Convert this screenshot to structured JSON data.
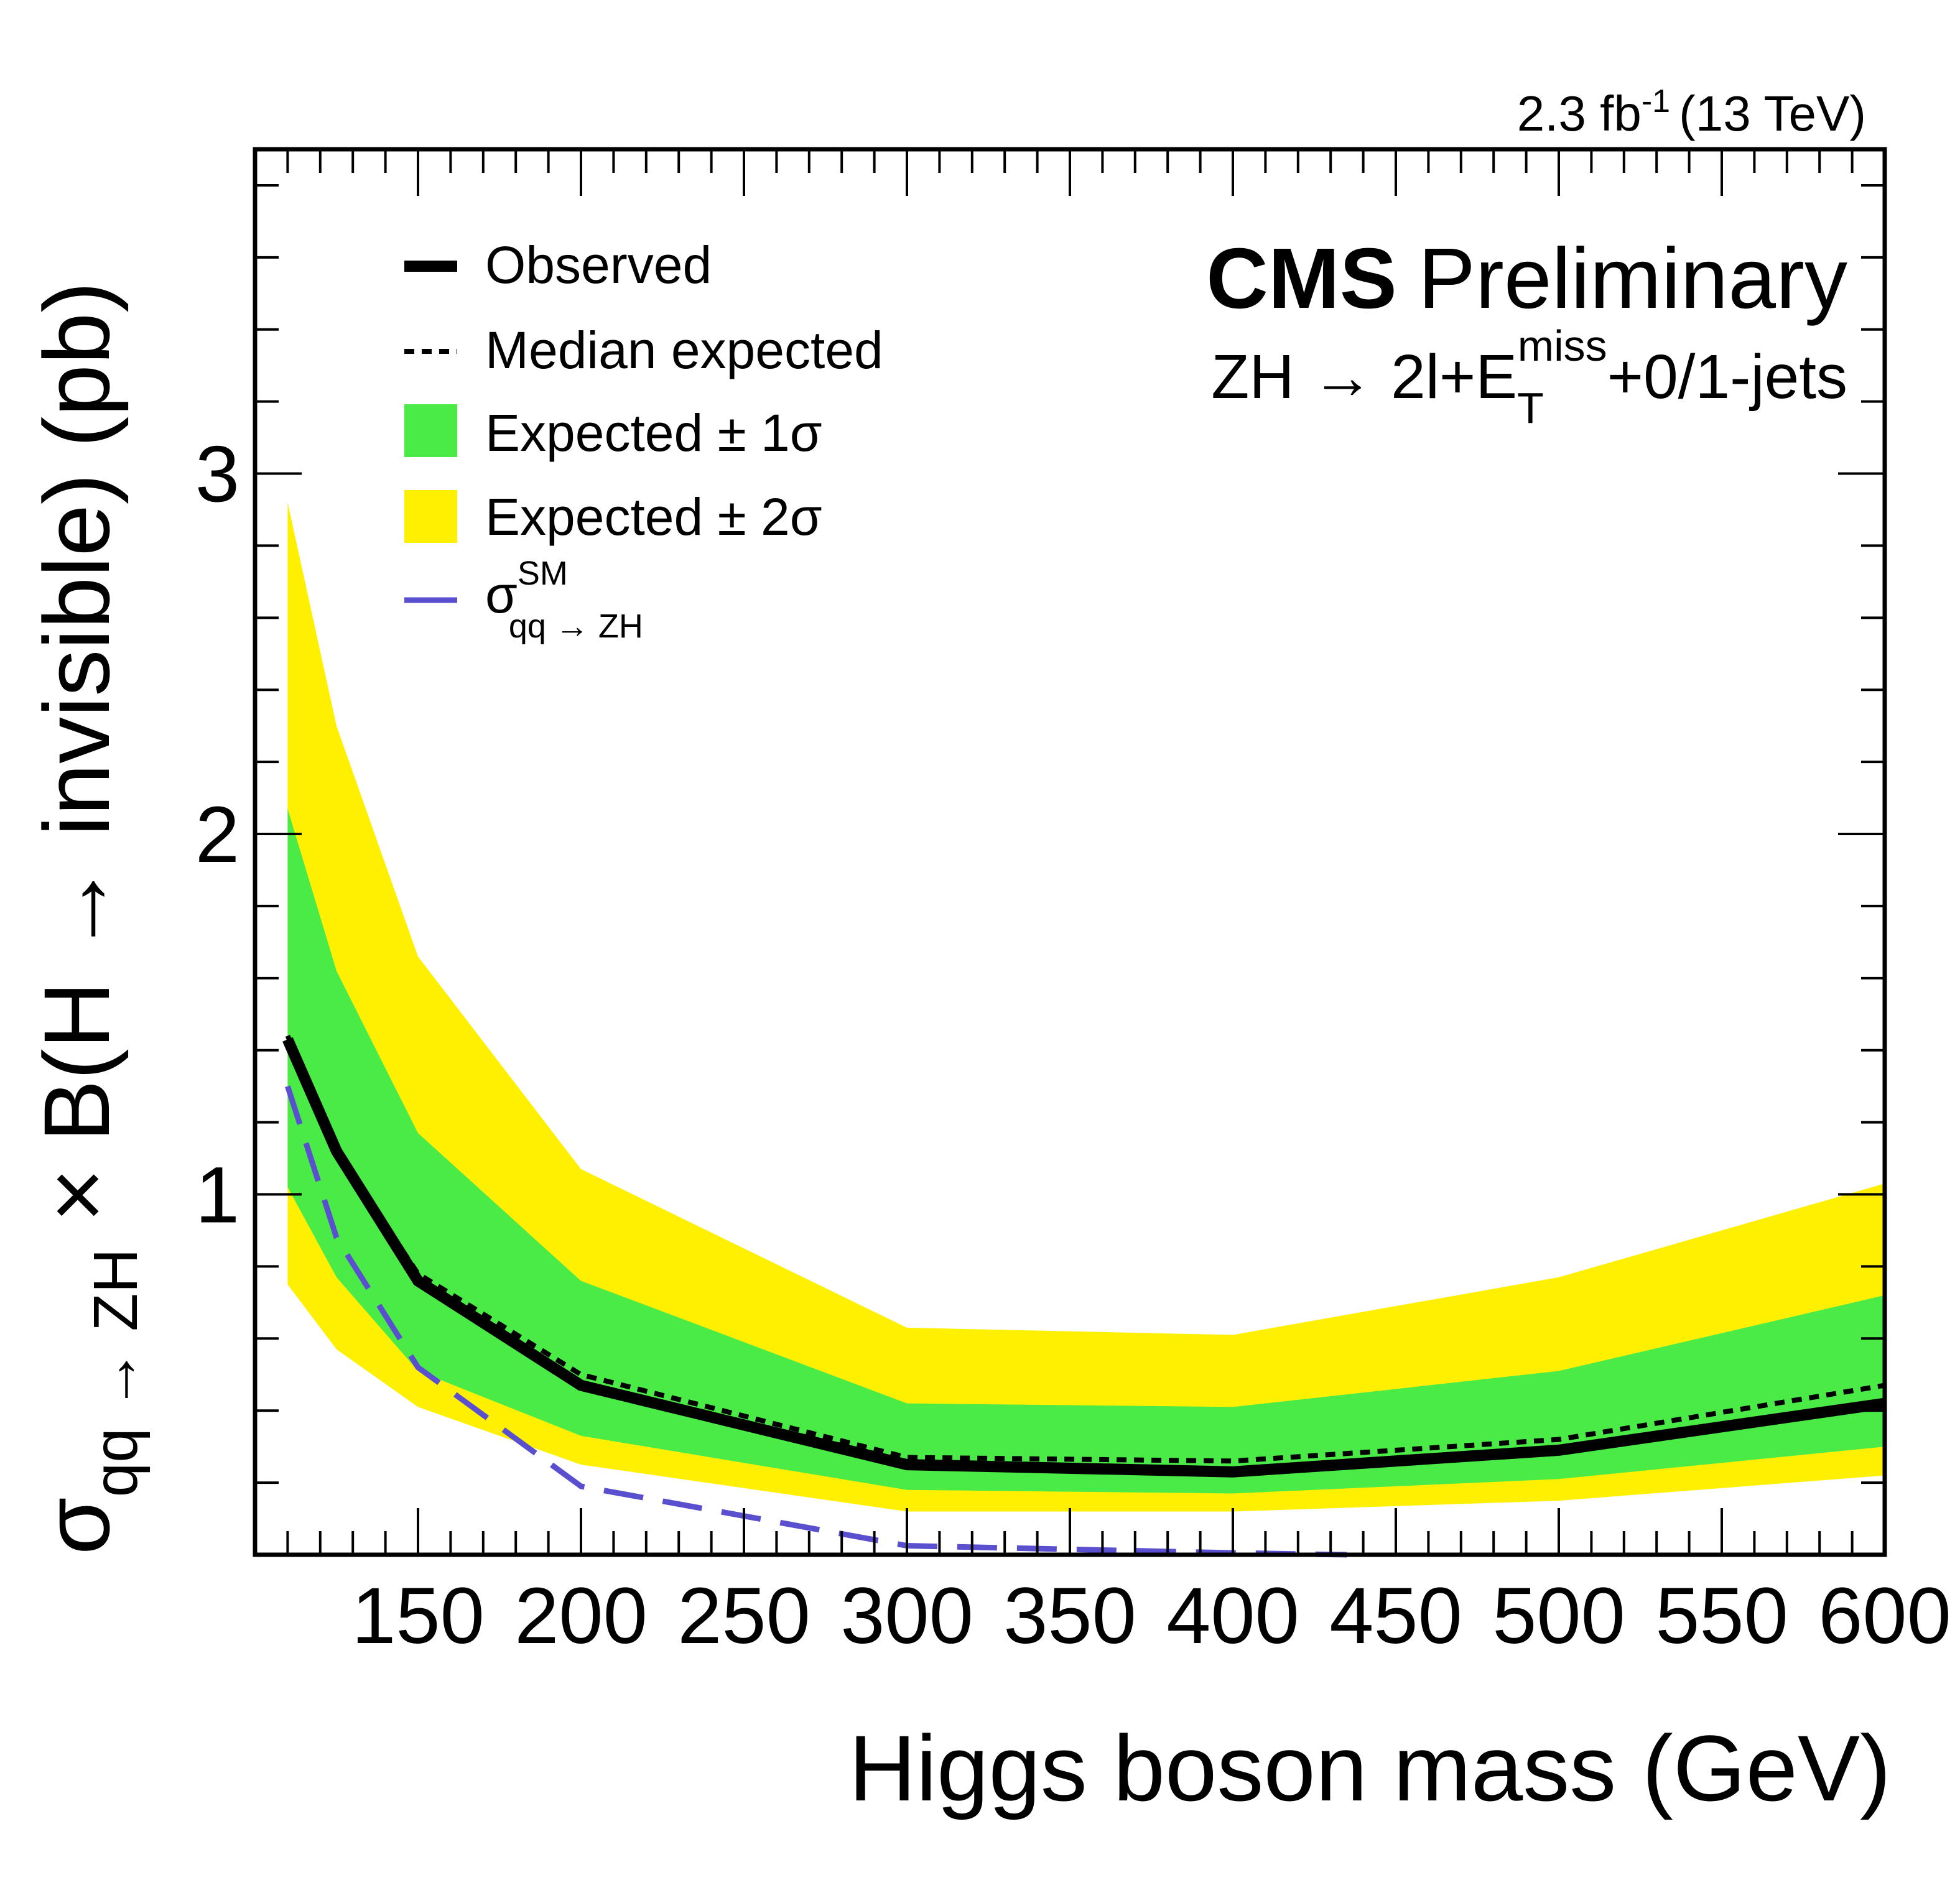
{
  "chart_data": {
    "type": "line",
    "lumi_label": "2.3 fb",
    "lumi_sup": "-1",
    "lumi_energy": "(13 TeV)",
    "experiment": "CMS",
    "experiment_tag": "Preliminary",
    "process": {
      "main": "ZH → 2l+E",
      "sub": "T",
      "sup": "miss",
      "tail": "+0/1-jets"
    },
    "xlabel": "Higgs boson mass (GeV)",
    "ylabel": {
      "sigma": "σ",
      "sub": "qq → ZH",
      "rest": " × B(H → invisible) (pb)"
    },
    "xlim": [
      100,
      600
    ],
    "ylim": [
      0,
      3.9
    ],
    "x_ticks": [
      150,
      200,
      250,
      300,
      350,
      400,
      450,
      500,
      550,
      600
    ],
    "y_ticks": [
      1,
      2,
      3
    ],
    "legend": {
      "placement": "top-left",
      "observed": "Observed",
      "median": "Median expected",
      "one_sigma": "Expected ± 1σ",
      "two_sigma": "Expected ± 2σ",
      "sm_sigma": "σ",
      "sm_sup": "SM",
      "sm_sub": "qq → ZH"
    },
    "colors": {
      "observed": "#000000",
      "median": "#000000",
      "one_sigma": "#4aeb46",
      "two_sigma": "#fff001",
      "sm": "#5a4fcf"
    },
    "x": [
      110,
      125,
      150,
      200,
      300,
      400,
      500,
      600
    ],
    "observed": [
      1.43,
      1.12,
      0.76,
      0.47,
      0.25,
      0.23,
      0.29,
      0.42
    ],
    "median_expected": [
      1.44,
      1.12,
      0.78,
      0.5,
      0.27,
      0.26,
      0.32,
      0.47
    ],
    "one_sigma_low": [
      1.02,
      0.77,
      0.51,
      0.33,
      0.18,
      0.17,
      0.21,
      0.3
    ],
    "one_sigma_high": [
      2.07,
      1.62,
      1.17,
      0.76,
      0.42,
      0.41,
      0.51,
      0.72
    ],
    "two_sigma_low": [
      0.75,
      0.57,
      0.41,
      0.25,
      0.12,
      0.12,
      0.15,
      0.22
    ],
    "two_sigma_high": [
      2.92,
      2.3,
      1.66,
      1.07,
      0.63,
      0.61,
      0.77,
      1.03
    ],
    "sm_x": [
      110,
      125,
      150,
      200,
      300,
      400,
      435
    ],
    "sm_xs": [
      1.3,
      0.88,
      0.52,
      0.19,
      0.025,
      0.005,
      0.0
    ]
  }
}
